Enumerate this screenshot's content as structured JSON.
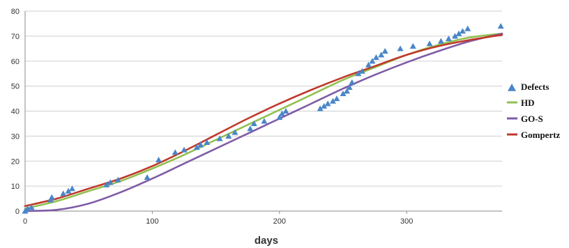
{
  "chart_data": {
    "type": "line",
    "xlabel": "days",
    "ylabel": "",
    "xlim": [
      0,
      375
    ],
    "ylim": [
      0,
      80
    ],
    "x_ticks": [
      0,
      100,
      200,
      300
    ],
    "y_ticks": [
      0,
      10,
      20,
      30,
      40,
      50,
      60,
      70,
      80
    ],
    "grid": "horizontal",
    "legend_position": "right",
    "series": [
      {
        "name": "Defects",
        "kind": "scatter",
        "marker": "triangle",
        "color": "#4a86c8",
        "points": [
          [
            0,
            0
          ],
          [
            2,
            1
          ],
          [
            5,
            1.5
          ],
          [
            20,
            4.5
          ],
          [
            21,
            5.5
          ],
          [
            30,
            7
          ],
          [
            34,
            8
          ],
          [
            37,
            9
          ],
          [
            64,
            10.5
          ],
          [
            67,
            11.5
          ],
          [
            73,
            12.5
          ],
          [
            96,
            13.5
          ],
          [
            105,
            20.5
          ],
          [
            118,
            23.5
          ],
          [
            125,
            24.5
          ],
          [
            135,
            25.5
          ],
          [
            138,
            26.5
          ],
          [
            143,
            27.5
          ],
          [
            153,
            29
          ],
          [
            160,
            30
          ],
          [
            165,
            31.5
          ],
          [
            177,
            33
          ],
          [
            180,
            35
          ],
          [
            188,
            36
          ],
          [
            200,
            37.5
          ],
          [
            202,
            39
          ],
          [
            205,
            40
          ],
          [
            232,
            41
          ],
          [
            235,
            42
          ],
          [
            238,
            43
          ],
          [
            242,
            44
          ],
          [
            245,
            45
          ],
          [
            250,
            47
          ],
          [
            253,
            48
          ],
          [
            255,
            49.5
          ],
          [
            257,
            51.5
          ],
          [
            262,
            55
          ],
          [
            265,
            56
          ],
          [
            270,
            58.5
          ],
          [
            273,
            60
          ],
          [
            276,
            61.5
          ],
          [
            280,
            62.5
          ],
          [
            283,
            64
          ],
          [
            295,
            65
          ],
          [
            305,
            66
          ],
          [
            318,
            67
          ],
          [
            327,
            68
          ],
          [
            333,
            69
          ],
          [
            338,
            70
          ],
          [
            341,
            71
          ],
          [
            344,
            72
          ],
          [
            348,
            73
          ],
          [
            374,
            74
          ]
        ]
      },
      {
        "name": "HD",
        "kind": "line",
        "color": "#92c050",
        "x": [
          0,
          25,
          50,
          75,
          100,
          125,
          150,
          175,
          200,
          225,
          250,
          275,
          300,
          325,
          350,
          375
        ],
        "values": [
          1,
          4,
          8,
          12,
          17,
          22.5,
          28.5,
          34.5,
          40.5,
          46.5,
          52.5,
          57.5,
          62.5,
          66.5,
          69.5,
          71
        ]
      },
      {
        "name": "GO-S",
        "kind": "line",
        "color": "#7f5ba6",
        "x": [
          0,
          25,
          50,
          75,
          100,
          125,
          150,
          175,
          200,
          225,
          250,
          275,
          300,
          325,
          350,
          375
        ],
        "values": [
          0,
          0.5,
          3,
          7.5,
          13,
          19,
          25,
          31,
          37,
          43,
          49,
          54.5,
          59.5,
          64,
          68,
          71
        ]
      },
      {
        "name": "Gompertz",
        "kind": "line",
        "color": "#c0392b",
        "x": [
          0,
          25,
          50,
          75,
          100,
          125,
          150,
          175,
          200,
          225,
          250,
          275,
          300,
          325,
          350,
          375
        ],
        "values": [
          2,
          5,
          9,
          13,
          18,
          24,
          30.5,
          37,
          43,
          48.5,
          53.5,
          58,
          62.5,
          66,
          68.5,
          70.5
        ]
      }
    ]
  }
}
